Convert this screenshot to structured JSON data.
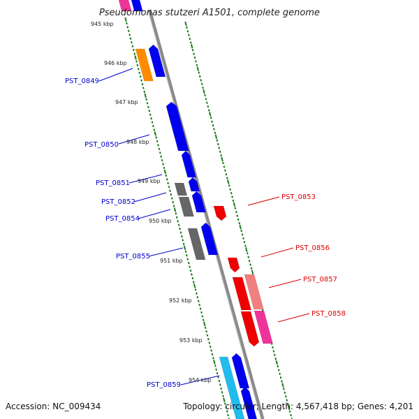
{
  "map": {
    "title": "Pseudomonas stutzeri A1501, complete genome",
    "accession": "Accession: NC_009434",
    "topology": "Topology: circular; Length: 4,567,418 bp; Genes: 4,201"
  },
  "kbp_labels": [
    "945 kbp",
    "946 kbp",
    "947 kbp",
    "948 kbp",
    "949 kbp",
    "950 kbp",
    "951 kbp",
    "952 kbp",
    "953 kbp",
    "954 kbp"
  ],
  "genes_left": [
    {
      "name": "PST_0849",
      "color": "#0000cc"
    },
    {
      "name": "PST_0850",
      "color": "#0000cc"
    },
    {
      "name": "PST_0851",
      "color": "#0000cc"
    },
    {
      "name": "PST_0852",
      "color": "#0000cc"
    },
    {
      "name": "PST_0854",
      "color": "#0000cc"
    },
    {
      "name": "PST_0855",
      "color": "#0000cc"
    },
    {
      "name": "PST_0859",
      "color": "#0000cc"
    }
  ],
  "genes_right": [
    {
      "name": "PST_0853",
      "color": "#dd0000"
    },
    {
      "name": "PST_0856",
      "color": "#dd0000"
    },
    {
      "name": "PST_0857",
      "color": "#dd0000"
    },
    {
      "name": "PST_0858",
      "color": "#dd0000"
    }
  ],
  "colors": {
    "backbone": "#8a8a8a",
    "tick_green": "#1a7a1a",
    "forward_cds": "#0000ee",
    "reverse_cds": "#ee0000",
    "gray_feature": "#666666",
    "orange_feature": "#ff8c00",
    "pink_feature": "#ee3399",
    "salmon_feature": "#f08080",
    "cyan_feature": "#22bbee"
  }
}
